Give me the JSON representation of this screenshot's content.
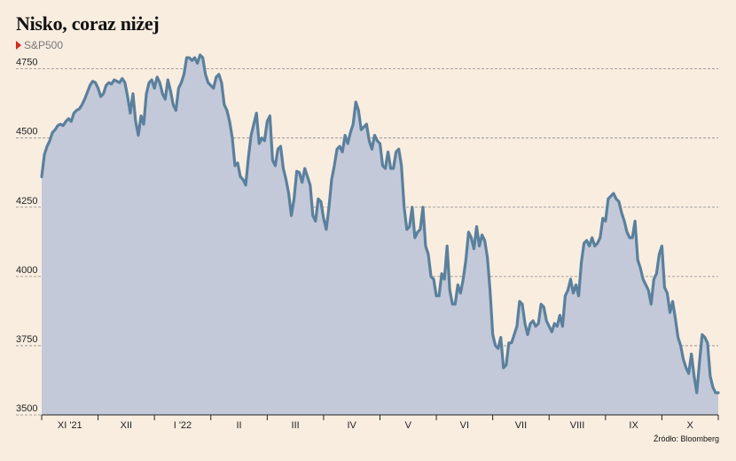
{
  "title": "Nisko, coraz niżej",
  "subtitle": "S&P500",
  "source": "Źródło: Bloomberg",
  "colors": {
    "line": "#5a809d",
    "area": "#c3c9d8",
    "background": "#f9ede0",
    "marker": "#d6271f"
  },
  "chart_data": {
    "type": "area",
    "title": "Nisko, coraz niżej",
    "subtitle": "S&P500",
    "ylim": [
      3500,
      4800
    ],
    "yticks": [
      3500,
      3750,
      4000,
      4250,
      4500,
      4750
    ],
    "grid": "horizontal dashed",
    "x_labels": [
      "XI '21",
      "XII",
      "I '22",
      "II",
      "III",
      "IV",
      "V",
      "VI",
      "VII",
      "VIII",
      "IX",
      "X"
    ],
    "series": [
      {
        "values": [
          4360,
          4440,
          4470,
          4490,
          4520,
          4530,
          4545,
          4550,
          4545,
          4560,
          4570,
          4560,
          4590,
          4600,
          4605,
          4620,
          4640,
          4665,
          4690,
          4705,
          4700,
          4680,
          4650,
          4660,
          4690,
          4700,
          4695,
          4710,
          4705,
          4700,
          4715,
          4700,
          4650,
          4590,
          4660,
          4560,
          4510,
          4580,
          4550,
          4660,
          4700,
          4710,
          4680,
          4720,
          4700,
          4660,
          4640,
          4710,
          4670,
          4620,
          4600,
          4680,
          4700,
          4730,
          4790,
          4790,
          4780,
          4790,
          4770,
          4800,
          4790,
          4730,
          4700,
          4690,
          4680,
          4720,
          4730,
          4700,
          4620,
          4600,
          4560,
          4500,
          4400,
          4410,
          4360,
          4350,
          4330,
          4430,
          4510,
          4550,
          4590,
          4480,
          4500,
          4490,
          4560,
          4580,
          4420,
          4400,
          4460,
          4470,
          4390,
          4350,
          4300,
          4220,
          4280,
          4380,
          4375,
          4340,
          4390,
          4360,
          4330,
          4220,
          4200,
          4280,
          4270,
          4210,
          4170,
          4250,
          4350,
          4400,
          4460,
          4470,
          4450,
          4510,
          4480,
          4520,
          4550,
          4630,
          4600,
          4530,
          4540,
          4550,
          4490,
          4460,
          4510,
          4490,
          4480,
          4400,
          4390,
          4450,
          4390,
          4390,
          4450,
          4460,
          4400,
          4250,
          4170,
          4180,
          4250,
          4140,
          4160,
          4170,
          4250,
          4110,
          4080,
          4000,
          3990,
          3930,
          3930,
          4010,
          3990,
          4110,
          3950,
          3900,
          3900,
          3970,
          3940,
          3990,
          4060,
          4160,
          4140,
          4100,
          4180,
          4110,
          4150,
          4130,
          4070,
          3950,
          3790,
          3750,
          3740,
          3780,
          3670,
          3680,
          3760,
          3760,
          3790,
          3820,
          3910,
          3900,
          3830,
          3790,
          3830,
          3840,
          3820,
          3830,
          3900,
          3890,
          3840,
          3820,
          3800,
          3830,
          3820,
          3860,
          3820,
          3930,
          3950,
          3990,
          3940,
          3970,
          3930,
          4050,
          4120,
          4130,
          4110,
          4140,
          4110,
          4120,
          4140,
          4210,
          4200,
          4280,
          4290,
          4300,
          4280,
          4270,
          4230,
          4200,
          4160,
          4140,
          4140,
          4200,
          4060,
          4030,
          3990,
          3970,
          3950,
          3900,
          3990,
          4010,
          4080,
          4110,
          3960,
          3940,
          3870,
          3910,
          3850,
          3780,
          3750,
          3700,
          3670,
          3650,
          3720,
          3640,
          3580,
          3690,
          3790,
          3780,
          3760,
          3640,
          3600,
          3580,
          3580
        ]
      }
    ]
  }
}
